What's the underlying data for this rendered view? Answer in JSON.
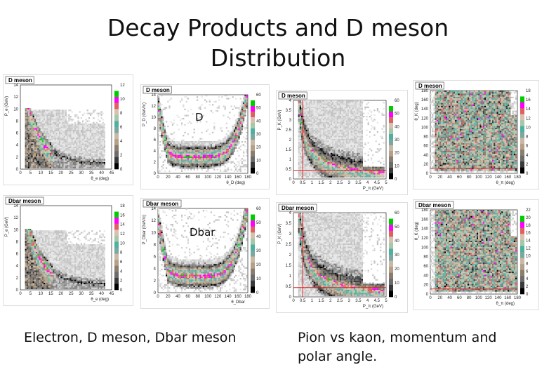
{
  "slide": {
    "title_line1": "Decay Products and D meson",
    "title_line2": "Distribution",
    "label_d": "D",
    "label_dbar": "Dbar",
    "caption_left": "Electron, D meson, Dbar meson",
    "caption_right_line1": "Pion vs kaon, momentum and",
    "caption_right_line2": "polar angle."
  },
  "panels": [
    {
      "id": "p1",
      "title": "D meson",
      "ylabel": "P_e (GeV)",
      "xlabel": "θ_e (deg)",
      "yticks": [
        "14",
        "12",
        "10",
        "8",
        "6",
        "4",
        "2",
        "0"
      ],
      "xticks": [
        "0",
        "5",
        "10",
        "15",
        "20",
        "25",
        "30",
        "35",
        "40",
        "45"
      ],
      "zticks": [
        "12",
        "10",
        "8",
        "6",
        "4",
        "2",
        "0"
      ],
      "kind": "falling"
    },
    {
      "id": "p2",
      "title": "D meson",
      "ylabel": "P_D (GeV/c)",
      "xlabel": "θ_D (deg)",
      "yticks": [
        "14",
        "12",
        "10",
        "8",
        "6",
        "4",
        "2",
        "0"
      ],
      "xticks": [
        "0",
        "20",
        "40",
        "60",
        "80",
        "100",
        "120",
        "140",
        "160",
        "180"
      ],
      "zticks": [
        "60",
        "50",
        "40",
        "30",
        "20",
        "10",
        "0"
      ],
      "kind": "ushape"
    },
    {
      "id": "p3",
      "title": "D meson",
      "ylabel": "P_K (GeV)",
      "xlabel": "P_π (GeV)",
      "yticks": [
        "4",
        "3.5",
        "3",
        "2.5",
        "2",
        "1.5",
        "1",
        "0.5",
        "0"
      ],
      "xticks": [
        "0",
        "0.5",
        "1",
        "1.5",
        "2",
        "2.5",
        "3",
        "3.5",
        "4",
        "4.5",
        "5"
      ],
      "zticks": [
        "60",
        "50",
        "40",
        "30",
        "20",
        "10",
        "0"
      ],
      "kind": "hyperbola"
    },
    {
      "id": "p4",
      "title": "D meson",
      "ylabel": "θ_K (deg)",
      "xlabel": "θ_π (deg)",
      "yticks": [
        "180",
        "160",
        "140",
        "120",
        "100",
        "80",
        "60",
        "40",
        "20",
        "0"
      ],
      "xticks": [
        "0",
        "20",
        "40",
        "60",
        "80",
        "100",
        "120",
        "140",
        "160",
        "180"
      ],
      "zticks": [
        "18",
        "16",
        "14",
        "12",
        "10",
        "8",
        "6",
        "4",
        "2",
        "0"
      ],
      "kind": "uniform"
    },
    {
      "id": "p5",
      "title": "Dbar meson",
      "ylabel": "P_e (GeV)",
      "xlabel": "θ_e (deg)",
      "yticks": [
        "14",
        "12",
        "10",
        "8",
        "6",
        "4",
        "2",
        "0"
      ],
      "xticks": [
        "0",
        "5",
        "10",
        "15",
        "20",
        "25",
        "30",
        "35",
        "40",
        "45"
      ],
      "zticks": [
        "18",
        "16",
        "14",
        "12",
        "10",
        "8",
        "6",
        "4",
        "2",
        "0"
      ],
      "kind": "falling"
    },
    {
      "id": "p6",
      "title": "Dbar meson",
      "ylabel": "P_Dbar (GeV/c)",
      "xlabel": "θ_Dbar",
      "yticks": [
        "14",
        "12",
        "10",
        "8",
        "6",
        "4",
        "2",
        "0"
      ],
      "xticks": [
        "0",
        "20",
        "40",
        "60",
        "80",
        "100",
        "120",
        "140",
        "160",
        "180"
      ],
      "zticks": [
        "60",
        "50",
        "40",
        "30",
        "20",
        "10",
        "0"
      ],
      "kind": "ushape"
    },
    {
      "id": "p7",
      "title": "Dbar meson",
      "ylabel": "P_K (GeV)",
      "xlabel": "P_π (GeV)",
      "yticks": [
        "4",
        "3.5",
        "3",
        "2.5",
        "2",
        "1.5",
        "1",
        "0.5",
        "0"
      ],
      "xticks": [
        "0",
        "0.5",
        "1",
        "1.5",
        "2",
        "2.5",
        "3",
        "3.5",
        "4",
        "4.5",
        "5"
      ],
      "zticks": [
        "60",
        "50",
        "40",
        "30",
        "20",
        "10",
        "0"
      ],
      "kind": "hyperbola"
    },
    {
      "id": "p8",
      "title": "Dbar meson",
      "ylabel": "θ_K (deg)",
      "xlabel": "θ_π (deg)",
      "yticks": [
        "180",
        "160",
        "140",
        "120",
        "100",
        "80",
        "60",
        "40",
        "20",
        "0"
      ],
      "xticks": [
        "0",
        "20",
        "40",
        "60",
        "80",
        "100",
        "120",
        "140",
        "160",
        "180"
      ],
      "zticks": [
        "22",
        "20",
        "18",
        "16",
        "14",
        "12",
        "10",
        "8",
        "6",
        "4",
        "2",
        "0"
      ],
      "kind": "uniform"
    }
  ],
  "palette": [
    "#000000",
    "#3a3a3a",
    "#6b6b6b",
    "#8a7d6e",
    "#b59f86",
    "#c9b8a4",
    "#7aa8a0",
    "#50b0a0",
    "#a4c8a8",
    "#d8c0b0",
    "#e06060",
    "#ff00ff",
    "#00cc00",
    "#ffffff"
  ]
}
